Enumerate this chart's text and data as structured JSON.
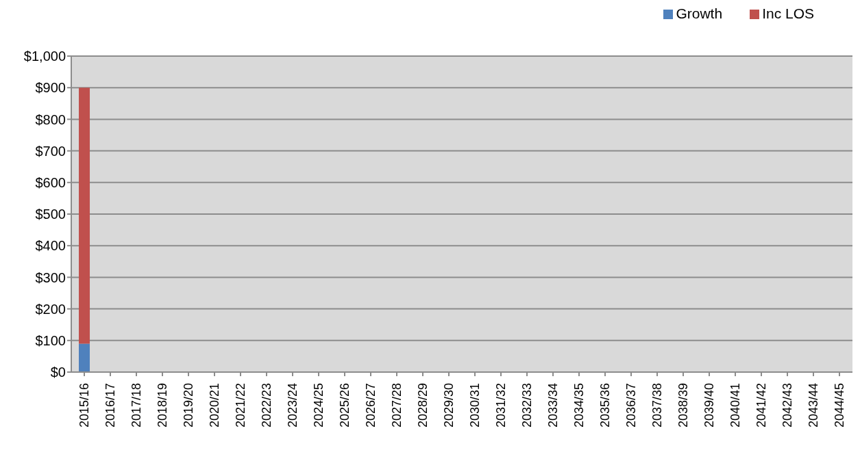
{
  "chart_data": {
    "type": "bar",
    "stacked": true,
    "categories": [
      "2015/16",
      "2016/17",
      "2017/18",
      "2018/19",
      "2019/20",
      "2020/21",
      "2021/22",
      "2022/23",
      "2023/24",
      "2024/25",
      "2025/26",
      "2026/27",
      "2027/28",
      "2028/29",
      "2029/30",
      "2030/31",
      "2031/32",
      "2032/33",
      "2033/34",
      "2034/35",
      "2035/36",
      "2036/37",
      "2037/38",
      "2038/39",
      "2039/40",
      "2040/41",
      "2041/42",
      "2042/43",
      "2043/44",
      "2044/45"
    ],
    "series": [
      {
        "name": "Growth",
        "color": "#4f81bd",
        "values": [
          90,
          null,
          null,
          null,
          null,
          null,
          null,
          null,
          null,
          null,
          null,
          null,
          null,
          null,
          null,
          null,
          null,
          null,
          null,
          null,
          null,
          null,
          null,
          null,
          null,
          null,
          null,
          null,
          null,
          null
        ]
      },
      {
        "name": "Inc LOS",
        "color": "#c0504d",
        "values": [
          810,
          null,
          null,
          null,
          null,
          null,
          null,
          null,
          null,
          null,
          null,
          null,
          null,
          null,
          null,
          null,
          null,
          null,
          null,
          null,
          null,
          null,
          null,
          null,
          null,
          null,
          null,
          null,
          null,
          null
        ]
      }
    ],
    "ylim": [
      0,
      1000
    ],
    "yticks": [
      {
        "value": 0,
        "label": "$0"
      },
      {
        "value": 100,
        "label": "$100"
      },
      {
        "value": 200,
        "label": "$200"
      },
      {
        "value": 300,
        "label": "$300"
      },
      {
        "value": 400,
        "label": "$400"
      },
      {
        "value": 500,
        "label": "$500"
      },
      {
        "value": 600,
        "label": "$600"
      },
      {
        "value": 700,
        "label": "$700"
      },
      {
        "value": 800,
        "label": "$800"
      },
      {
        "value": 900,
        "label": "$900"
      },
      {
        "value": 1000,
        "label": "$1,000"
      }
    ],
    "grid": "y",
    "legend": "top right"
  }
}
